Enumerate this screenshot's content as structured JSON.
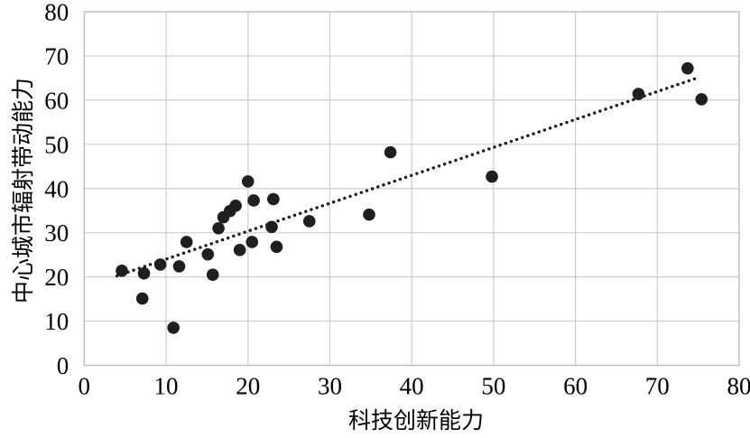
{
  "chart_data": {
    "type": "scatter",
    "title": "",
    "xlabel": "科技创新能力",
    "ylabel": "中心城市辐射带动能力",
    "xlim": [
      0,
      80
    ],
    "ylim": [
      0,
      80
    ],
    "xticks": [
      0,
      10,
      20,
      30,
      40,
      50,
      60,
      70,
      80
    ],
    "yticks": [
      0,
      10,
      20,
      30,
      40,
      50,
      60,
      70,
      80
    ],
    "grid": true,
    "legend": false,
    "points": [
      [
        4.6,
        21.4
      ],
      [
        7.3,
        20.8
      ],
      [
        7.1,
        15.1
      ],
      [
        9.3,
        22.8
      ],
      [
        10.9,
        8.5
      ],
      [
        11.6,
        22.4
      ],
      [
        12.5,
        27.9
      ],
      [
        15.1,
        25.1
      ],
      [
        15.7,
        20.5
      ],
      [
        16.4,
        31.0
      ],
      [
        17.0,
        33.5
      ],
      [
        17.8,
        34.9
      ],
      [
        18.5,
        36.1
      ],
      [
        19.0,
        26.1
      ],
      [
        20.0,
        41.6
      ],
      [
        20.5,
        27.9
      ],
      [
        20.7,
        37.3
      ],
      [
        22.9,
        31.3
      ],
      [
        23.1,
        37.6
      ],
      [
        23.5,
        26.8
      ],
      [
        27.5,
        32.6
      ],
      [
        34.8,
        34.1
      ],
      [
        37.4,
        48.2
      ],
      [
        49.8,
        42.7
      ],
      [
        67.7,
        61.4
      ],
      [
        73.7,
        67.2
      ],
      [
        75.4,
        60.2
      ]
    ],
    "trendline": {
      "style": "dotted",
      "slope": 0.632,
      "intercept": 17.7,
      "x_start": 4.0,
      "x_end": 75.2
    },
    "colors": {
      "point": "#1f1f1f",
      "trend": "#1a1a1a",
      "grid": "#cdcdcd",
      "border": "#bdbdbd",
      "text": "#000000"
    }
  }
}
